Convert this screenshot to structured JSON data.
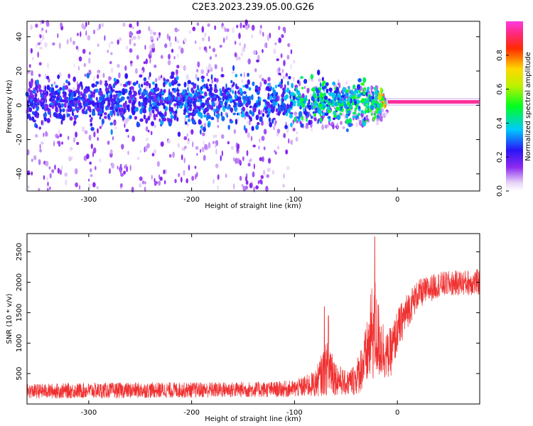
{
  "title": "C2E3.2023.239.05.00.G26",
  "chart_data": [
    {
      "type": "heatmap",
      "title": "C2E3.2023.239.05.00.G26",
      "xlabel": "Height of straight line (km)",
      "ylabel": "Frequency (Hz)",
      "xlim": [
        -360,
        80
      ],
      "ylim": [
        -50,
        49
      ],
      "x_ticks": [
        "-300",
        "-200",
        "-100",
        "0"
      ],
      "y_ticks": [
        "40",
        "20",
        "0",
        "-20",
        "-40"
      ],
      "colorbar": {
        "label": "Normalized spectral amplitude",
        "range": [
          0,
          1
        ],
        "ticks": [
          "0.0",
          "0.2",
          "0.4",
          "0.6",
          "0.8"
        ]
      },
      "tone_band": {
        "x_start": -10,
        "x_end": 80,
        "frequency_hz": 2,
        "amplitude": 0.95
      },
      "scatter_profile": [
        {
          "x": -360,
          "core_amplitude": 0.25,
          "spread_hz": 45
        },
        {
          "x": -110,
          "core_amplitude": 0.3,
          "spread_hz": 45
        },
        {
          "x": -95,
          "core_amplitude": 0.4,
          "spread_hz": 15
        },
        {
          "x": -20,
          "core_amplitude": 0.45,
          "spread_hz": 10
        },
        {
          "x": -5,
          "core_amplitude": 0.95,
          "spread_hz": 2
        }
      ],
      "grid": false
    },
    {
      "type": "line",
      "xlabel": "Height of straight line (km)",
      "ylabel": "SNR (10 * v/v)",
      "xlim": [
        -360,
        80
      ],
      "ylim": [
        0,
        2800
      ],
      "x_ticks": [
        "-300",
        "-200",
        "-100",
        "0"
      ],
      "y_ticks": [
        "500",
        "1000",
        "1500",
        "2000",
        "2500"
      ],
      "color": "#f03030",
      "series": [
        {
          "x": [
            -360,
            -300,
            -200,
            -120,
            -100,
            -80,
            -70,
            -65,
            -60,
            -50,
            -40,
            -30,
            -25,
            -22,
            -20,
            -15,
            -10,
            -5,
            0,
            10,
            20,
            40,
            60,
            80
          ],
          "y_mean": [
            210,
            220,
            230,
            240,
            250,
            330,
            560,
            620,
            430,
            330,
            420,
            780,
            1150,
            1250,
            1100,
            950,
            780,
            900,
            1200,
            1550,
            1800,
            1960,
            1990,
            2000
          ],
          "y_noise": [
            120,
            130,
            130,
            130,
            140,
            220,
            420,
            500,
            280,
            200,
            280,
            520,
            800,
            900,
            700,
            550,
            380,
            420,
            360,
            300,
            240,
            210,
            210,
            220
          ],
          "peaks": [
            {
              "x": -22,
              "y": 2750
            },
            {
              "x": -67,
              "y": 1450
            },
            {
              "x": -71,
              "y": 1600
            }
          ]
        }
      ],
      "grid": false
    }
  ]
}
